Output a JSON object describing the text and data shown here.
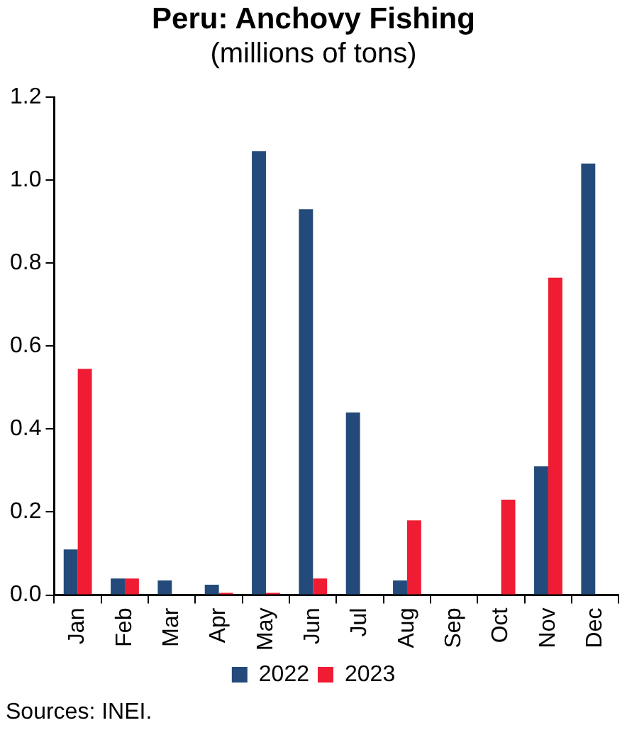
{
  "chart_data": {
    "type": "bar",
    "title": "Peru: Anchovy Fishing",
    "subtitle": "(millions of tons)",
    "categories": [
      "Jan",
      "Feb",
      "Mar",
      "Apr",
      "May",
      "Jun",
      "Jul",
      "Aug",
      "Sep",
      "Oct",
      "Nov",
      "Dec"
    ],
    "series": [
      {
        "name": "2022",
        "color": "#234a7a",
        "values": [
          0.11,
          0.04,
          0.035,
          0.025,
          1.07,
          0.93,
          0.44,
          0.035,
          null,
          null,
          0.31,
          1.04
        ]
      },
      {
        "name": "2023",
        "color": "#ef1c33",
        "values": [
          0.545,
          0.04,
          0,
          0.005,
          0.005,
          0.04,
          0,
          0.18,
          0,
          0.23,
          0.765,
          null
        ]
      }
    ],
    "ylim": [
      0,
      1.2
    ],
    "yticks": [
      {
        "value": 0,
        "label": "0.0"
      },
      {
        "value": 0.2,
        "label": "0.2"
      },
      {
        "value": 0.4,
        "label": "0.4"
      },
      {
        "value": 0.6,
        "label": "0.6"
      },
      {
        "value": 0.8,
        "label": "0.8"
      },
      {
        "value": 1,
        "label": "1.0"
      },
      {
        "value": 1.2,
        "label": "1.2"
      }
    ],
    "grid": false,
    "legend": "bottom",
    "annotations": [
      "Sources: INEI."
    ]
  }
}
